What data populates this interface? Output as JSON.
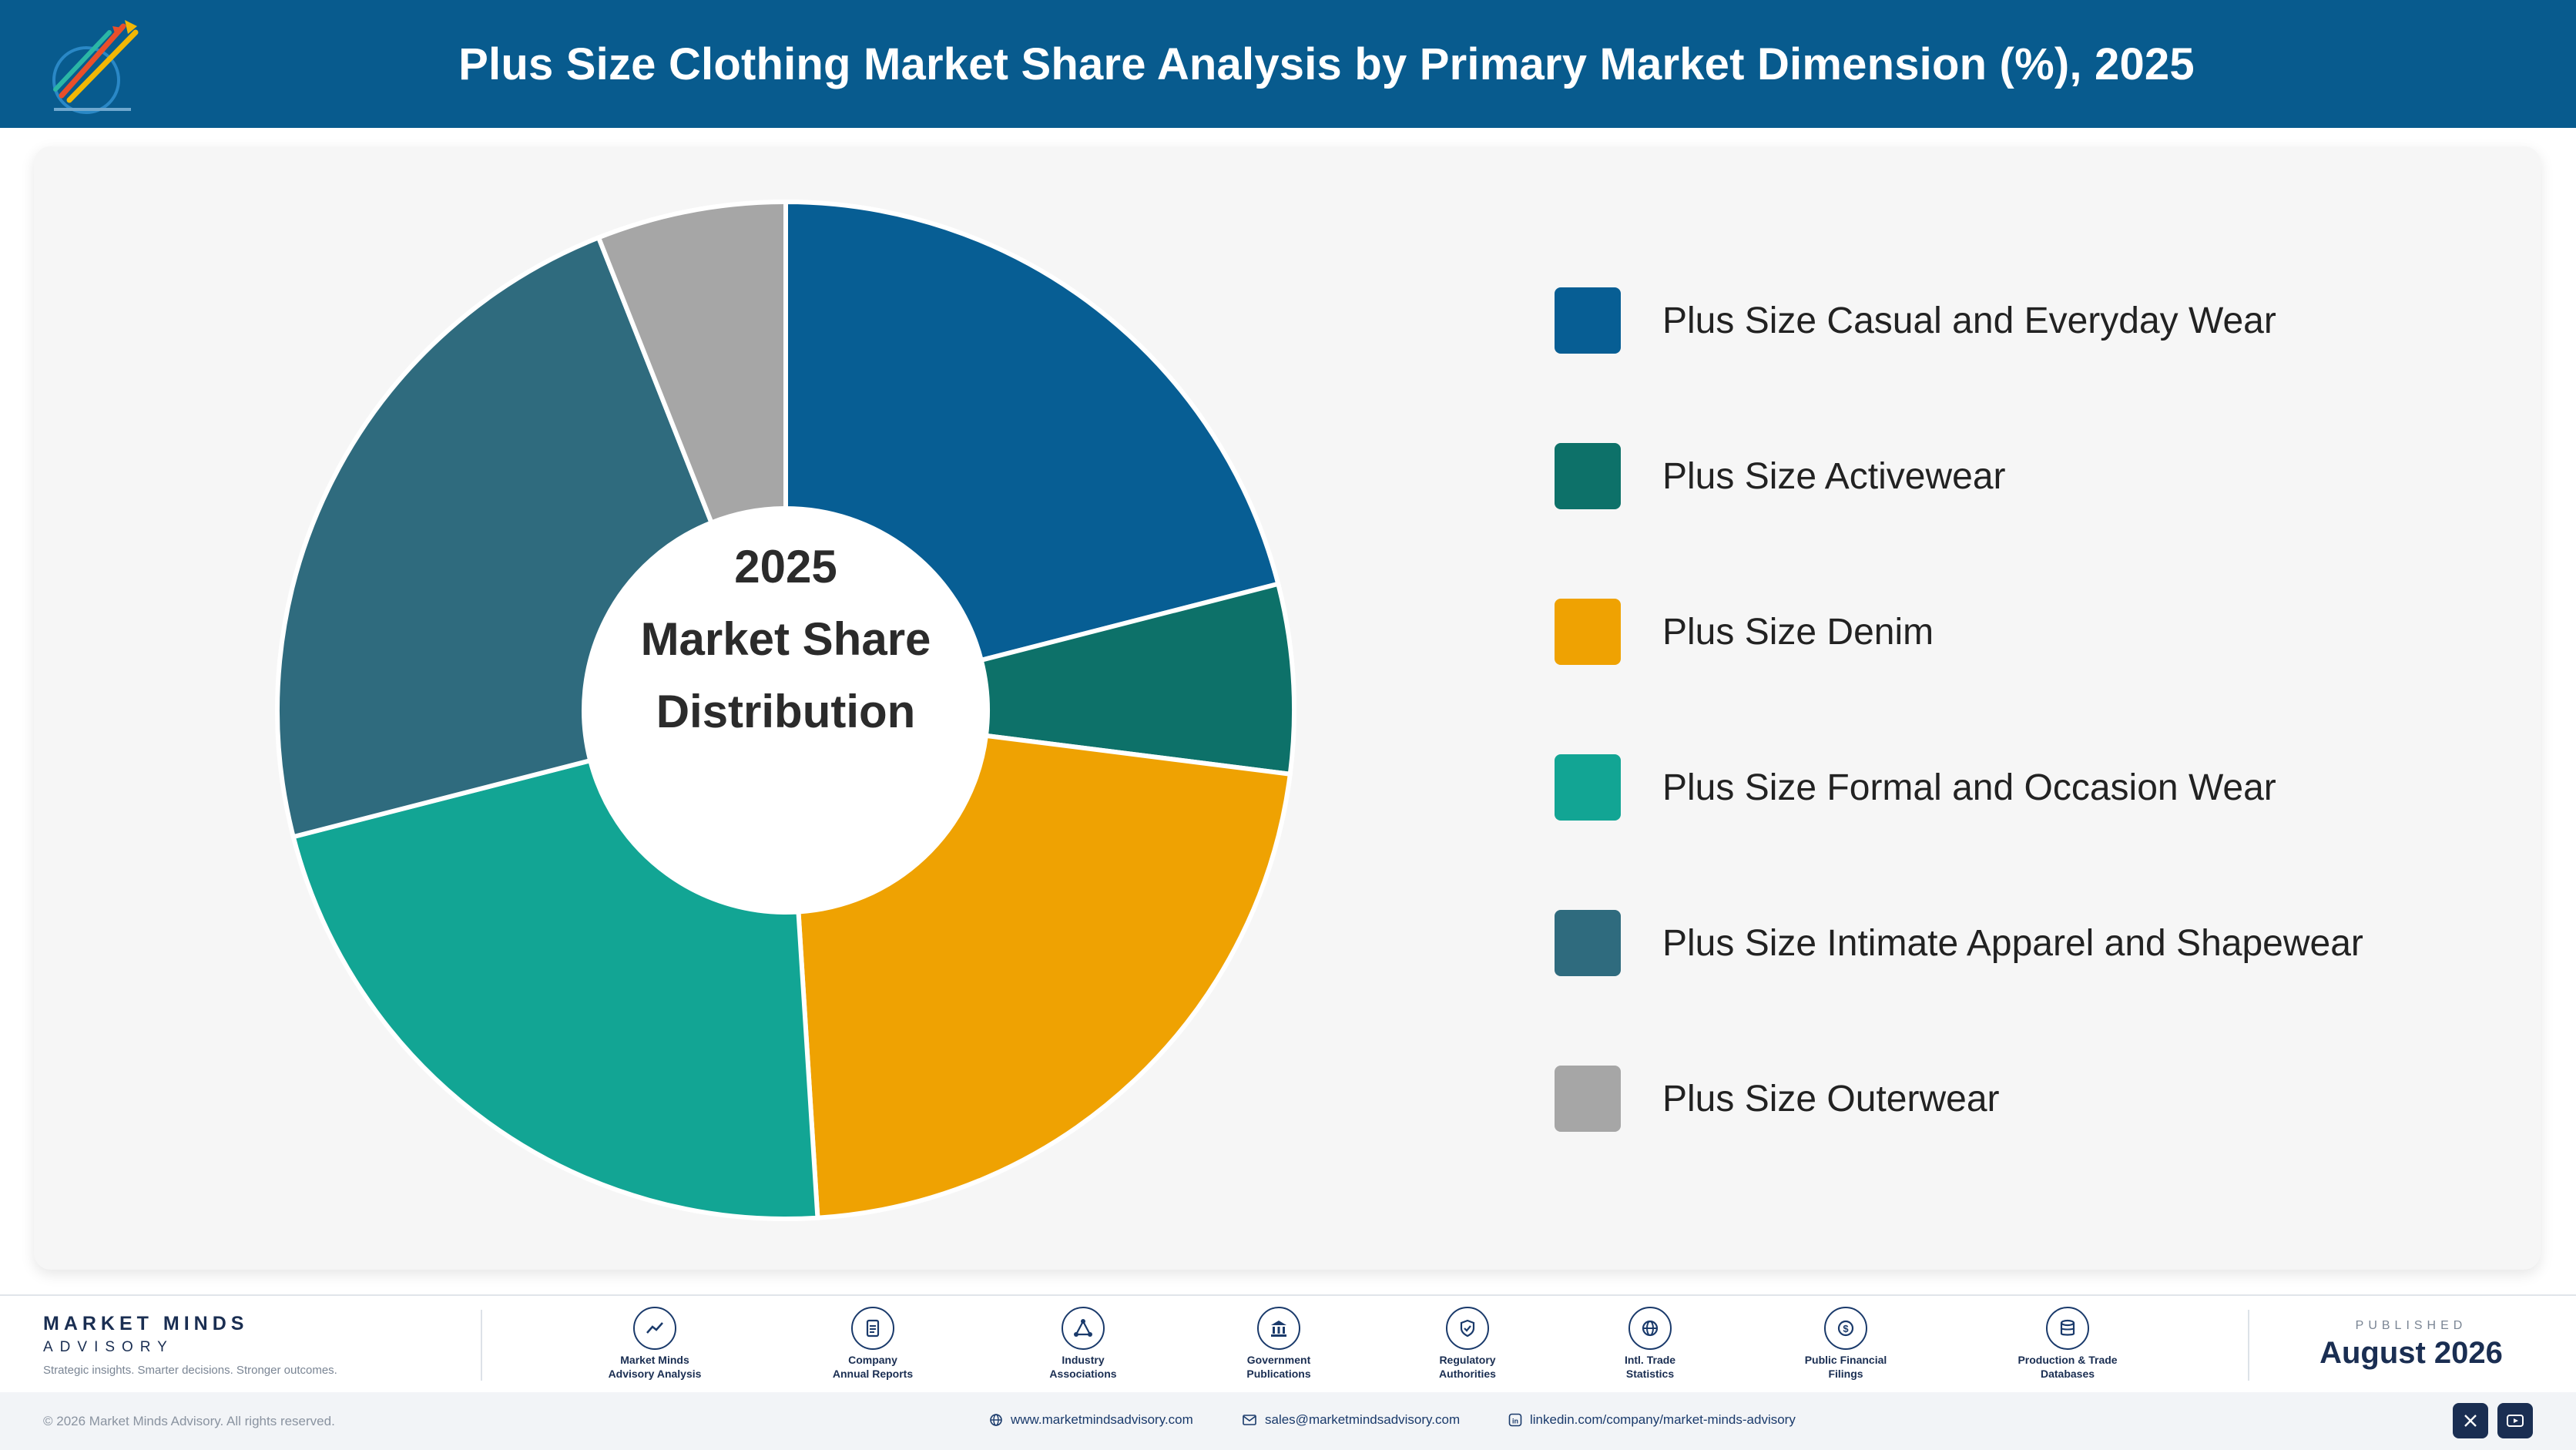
{
  "header": {
    "title": "Plus Size Clothing Market Share Analysis by Primary Market Dimension (%), 2025",
    "logo_icon": "market-minds-logo"
  },
  "chart_data": {
    "type": "pie",
    "variant": "donut",
    "title": "Plus Size Clothing Market Share Analysis by Primary Market Dimension (%), 2025",
    "center_label": [
      "2025",
      "Market Share",
      "Distribution"
    ],
    "legend_position": "right",
    "categories": [
      "Plus Size Casual and Everyday Wear",
      "Plus Size Activewear",
      "Plus Size Denim",
      "Plus Size Formal and Occasion Wear",
      "Plus Size Intimate Apparel and Shapewear",
      "Plus Size Outerwear"
    ],
    "values": [
      21,
      6,
      22,
      22,
      23,
      6
    ],
    "colors": [
      "#075e94",
      "#0d7169",
      "#efa202",
      "#12a594",
      "#2f6b7e",
      "#a6a6a6"
    ]
  },
  "footer": {
    "brand_name": "MARKET MINDS",
    "brand_sub": "ADVISORY",
    "tagline": "Strategic insights. Smarter decisions. Stronger outcomes.",
    "sources": [
      {
        "label_1": "Market Minds",
        "label_2": "Advisory Analysis",
        "icon": "trend-line-icon"
      },
      {
        "label_1": "Company",
        "label_2": "Annual Reports",
        "icon": "document-icon"
      },
      {
        "label_1": "Industry",
        "label_2": "Associations",
        "icon": "network-icon"
      },
      {
        "label_1": "Government",
        "label_2": "Publications",
        "icon": "government-building-icon"
      },
      {
        "label_1": "Regulatory",
        "label_2": "Authorities",
        "icon": "shield-check-icon"
      },
      {
        "label_1": "Intl. Trade",
        "label_2": "Statistics",
        "icon": "globe-icon"
      },
      {
        "label_1": "Public Financial",
        "label_2": "Filings",
        "icon": "dollar-coin-icon"
      },
      {
        "label_1": "Production & Trade",
        "label_2": "Databases",
        "icon": "database-icon"
      }
    ],
    "published_label": "PUBLISHED",
    "published_date": "August 2026",
    "copyright": "© 2026 Market Minds Advisory. All rights reserved.",
    "website": "www.marketmindsadvisory.com",
    "email": "sales@marketmindsadvisory.com",
    "linkedin": "linkedin.com/company/market-minds-advisory",
    "social_icons": [
      "x-icon",
      "youtube-icon"
    ]
  }
}
